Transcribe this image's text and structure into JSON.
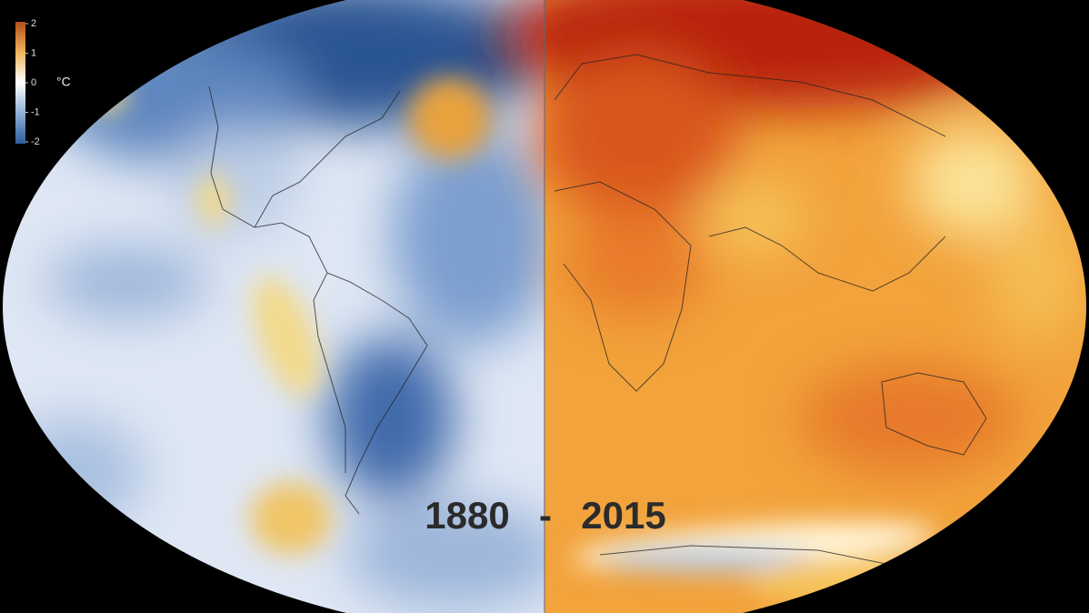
{
  "legend": {
    "ticks": [
      2,
      1,
      0,
      -1,
      -2
    ],
    "unit": "°C"
  },
  "labels": {
    "start_year": "1880",
    "separator": "-",
    "end_year": "2015"
  }
}
